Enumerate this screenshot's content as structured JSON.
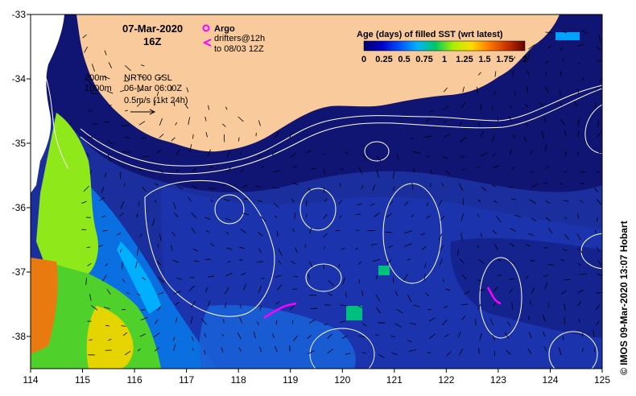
{
  "header": {
    "date": "07-Mar-2020",
    "time": "16Z"
  },
  "legend": {
    "argo_label": "Argo",
    "drifters_line1": "drifters@12h",
    "drifters_line2": "to 08/03 12Z",
    "argo_color": "#ff00ff",
    "drifter_color": "#ff00ff"
  },
  "contour_legend": {
    "depth1": "200m",
    "depth2": "1000m"
  },
  "current_info": {
    "source": "NRT00 GSL",
    "datetime": "06-Mar 06:00Z",
    "scale": "0.5m/s (1kt 24h)"
  },
  "colorbar": {
    "title": "Age (days) of filled SST (wrt latest)",
    "labels": [
      "0",
      "0.25",
      "0.5",
      "0.75",
      "1",
      "1.25",
      "1.5",
      "1.75",
      "2"
    ],
    "min": 0,
    "max": 2,
    "colors": [
      "#00006e",
      "#0000c8",
      "#0050ff",
      "#00b4ff",
      "#00c864",
      "#aaf000",
      "#ffdc00",
      "#ff7800",
      "#c83200",
      "#640000"
    ]
  },
  "axes": {
    "x_ticks": [
      "114",
      "115",
      "116",
      "117",
      "118",
      "119",
      "120",
      "121",
      "122",
      "123",
      "124",
      "125"
    ],
    "y_ticks": [
      "-33",
      "-34",
      "-35",
      "-36",
      "-37",
      "-38"
    ],
    "lon_range": [
      114,
      125
    ],
    "lat_range": [
      -38.5,
      -33
    ]
  },
  "credit": "© IMOS 09-Mar-2020 13:07 Hobart",
  "colors": {
    "land": "#f9cb9c",
    "ocean_base": "#1a2e9e",
    "ocean_light": "#2b4bc8",
    "ocean_dark": "#10126e"
  }
}
